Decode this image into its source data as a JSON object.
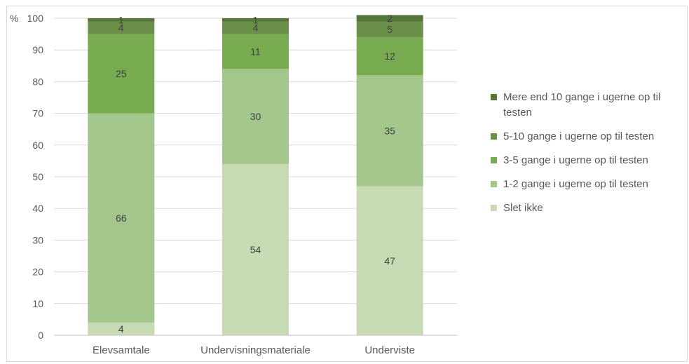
{
  "chart_data": {
    "type": "bar",
    "stacked": true,
    "ylabel": "%",
    "ylim": [
      0,
      100
    ],
    "yticks": [
      0,
      10,
      20,
      30,
      40,
      50,
      60,
      70,
      80,
      90,
      100
    ],
    "grid": true,
    "legend_position": "right",
    "categories": [
      "Elevsamtale",
      "Undervisningsmateriale",
      "Underviste"
    ],
    "series": [
      {
        "name": "Slet ikke",
        "values": [
          4,
          54,
          47
        ],
        "color": "#c6dbb4"
      },
      {
        "name": "1-2 gange i ugerne op til testen",
        "values": [
          66,
          30,
          35
        ],
        "color": "#a3c68a"
      },
      {
        "name": "3-5 gange i ugerne op til testen",
        "values": [
          25,
          11,
          12
        ],
        "color": "#78ab50"
      },
      {
        "name": "5-10 gange i ugerne op til testen",
        "values": [
          4,
          4,
          5
        ],
        "color": "#6b8f48"
      },
      {
        "name": "Mere end 10 gange i ugerne op til testen",
        "values": [
          1,
          1,
          2
        ],
        "color": "#56753a"
      }
    ]
  }
}
